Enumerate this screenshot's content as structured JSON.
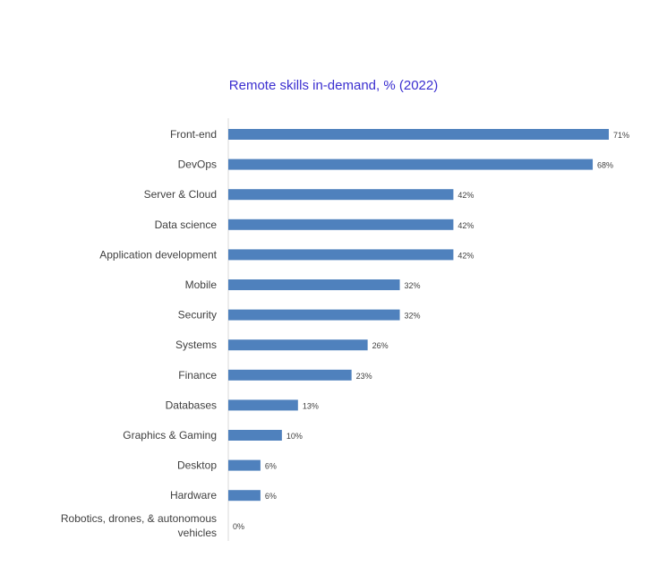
{
  "chart_data": {
    "type": "bar",
    "orientation": "horizontal",
    "title": "Remote skills in-demand, % (2022)",
    "categories": [
      "Front-end",
      "DevOps",
      "Server & Cloud",
      "Data science",
      "Application development",
      "Mobile",
      "Security",
      "Systems",
      "Finance",
      "Databases",
      "Graphics & Gaming",
      "Desktop",
      "Hardware",
      [
        "Robotics, drones, & autonomous",
        "vehicles"
      ]
    ],
    "values": [
      71,
      68,
      42,
      42,
      42,
      32,
      32,
      26,
      23,
      13,
      10,
      6,
      6,
      0
    ],
    "data_labels": [
      "71%",
      "68%",
      "42%",
      "42%",
      "42%",
      "32%",
      "32%",
      "26%",
      "23%",
      "13%",
      "10%",
      "6%",
      "6%",
      "0%"
    ],
    "xlim": [
      0,
      71
    ],
    "grid": false,
    "legend": "none",
    "colors": {
      "bar": "#4f81bd",
      "title": "#3b2fd0",
      "axis": "#d9d9d9",
      "text": "#404040"
    }
  }
}
